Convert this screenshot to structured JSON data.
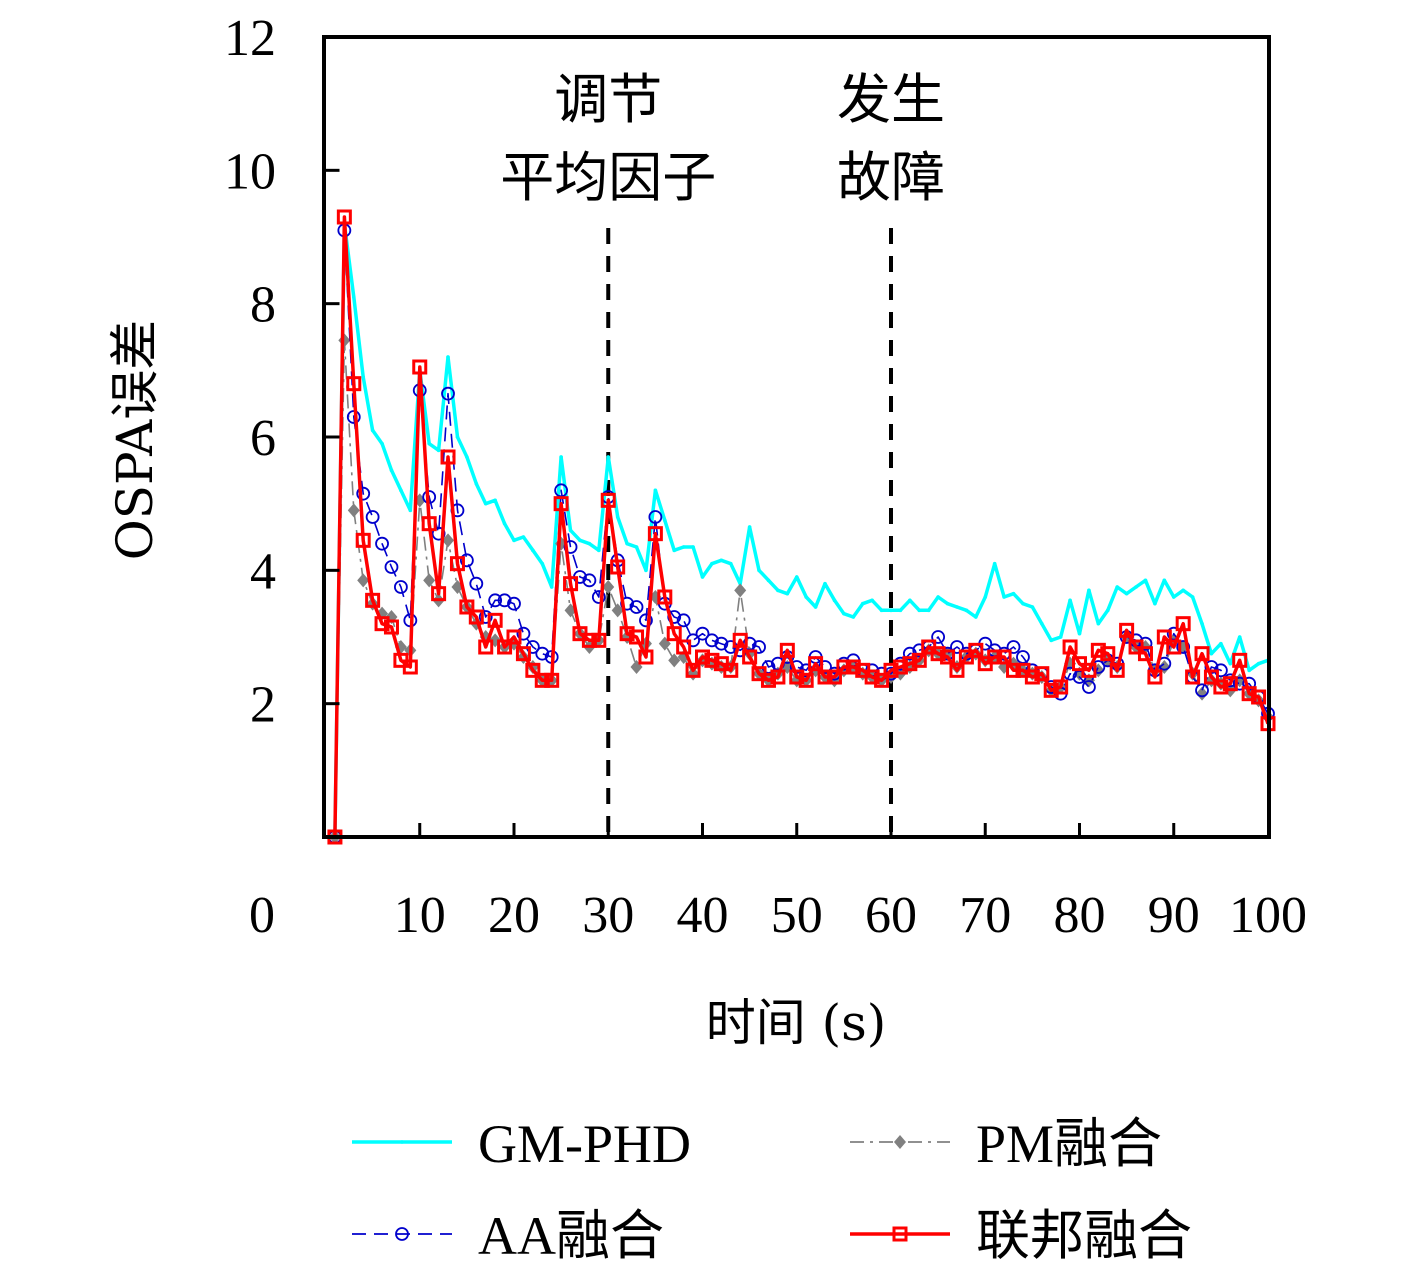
{
  "chart_data": {
    "type": "line",
    "title": "",
    "xlabel": "时间 (s)",
    "ylabel": "OSPA误差",
    "xlim": [
      0,
      100
    ],
    "ylim": [
      0,
      12
    ],
    "xticks": [
      0,
      10,
      20,
      30,
      40,
      50,
      60,
      70,
      80,
      90,
      100
    ],
    "xtick_labels": [
      "0",
      "10",
      "20",
      "30",
      "40",
      "50",
      "60",
      "70",
      "80",
      "90",
      "100"
    ],
    "yticks": [
      2,
      4,
      6,
      8,
      10,
      12
    ],
    "ytick_labels": [
      "2",
      "4",
      "6",
      "8",
      "10",
      "12"
    ],
    "grid": false,
    "legend_position": "bottom",
    "annotations": [
      {
        "x": 30,
        "lines": [
          "调节",
          "平均因子"
        ],
        "style": "dashed-vline"
      },
      {
        "x": 60,
        "lines": [
          "发生",
          "故障"
        ],
        "style": "dashed-vline"
      }
    ],
    "x": [
      1,
      2,
      3,
      4,
      5,
      6,
      7,
      8,
      9,
      10,
      11,
      12,
      13,
      14,
      15,
      16,
      17,
      18,
      19,
      20,
      21,
      22,
      23,
      24,
      25,
      26,
      27,
      28,
      29,
      30,
      31,
      32,
      33,
      34,
      35,
      36,
      37,
      38,
      39,
      40,
      41,
      42,
      43,
      44,
      45,
      46,
      47,
      48,
      49,
      50,
      51,
      52,
      53,
      54,
      55,
      56,
      57,
      58,
      59,
      60,
      61,
      62,
      63,
      64,
      65,
      66,
      67,
      68,
      69,
      70,
      71,
      72,
      73,
      74,
      75,
      76,
      77,
      78,
      79,
      80,
      81,
      82,
      83,
      84,
      85,
      86,
      87,
      88,
      89,
      90,
      91,
      92,
      93,
      94,
      95,
      96,
      97,
      98,
      99,
      100
    ],
    "series": [
      {
        "name": "GM-PHD",
        "color": "#00ffff",
        "line": "solid",
        "marker": "dot",
        "values": [
          0,
          9.2,
          8.1,
          6.9,
          6.1,
          5.9,
          5.5,
          5.2,
          4.9,
          7.0,
          5.9,
          5.8,
          7.2,
          6.0,
          5.7,
          5.3,
          5.0,
          5.05,
          4.7,
          4.45,
          4.5,
          4.3,
          4.1,
          3.75,
          5.7,
          4.6,
          4.45,
          4.4,
          4.3,
          5.7,
          4.8,
          4.4,
          4.35,
          4.0,
          5.2,
          4.75,
          4.3,
          4.35,
          4.35,
          3.9,
          4.1,
          4.15,
          4.1,
          3.8,
          4.65,
          4.0,
          3.85,
          3.7,
          3.65,
          3.9,
          3.6,
          3.45,
          3.8,
          3.55,
          3.35,
          3.3,
          3.5,
          3.55,
          3.4,
          3.4,
          3.4,
          3.55,
          3.4,
          3.4,
          3.6,
          3.5,
          3.45,
          3.4,
          3.3,
          3.6,
          4.1,
          3.6,
          3.65,
          3.5,
          3.45,
          3.2,
          2.95,
          3.0,
          3.55,
          3.05,
          3.7,
          3.2,
          3.4,
          3.75,
          3.65,
          3.75,
          3.85,
          3.5,
          3.85,
          3.6,
          3.7,
          3.6,
          3.2,
          2.75,
          2.9,
          2.6,
          3.0,
          2.5,
          2.6,
          2.65
        ]
      },
      {
        "name": "AA融合",
        "color": "#0000cc",
        "line": "dashed",
        "marker": "circle",
        "values": [
          0,
          9.1,
          6.3,
          5.15,
          4.8,
          4.4,
          4.05,
          3.75,
          3.25,
          6.7,
          5.1,
          4.55,
          6.65,
          4.9,
          4.15,
          3.8,
          3.3,
          3.55,
          3.55,
          3.5,
          3.05,
          2.85,
          2.75,
          2.7,
          5.2,
          4.35,
          3.9,
          3.85,
          3.6,
          5.1,
          4.15,
          3.5,
          3.45,
          3.25,
          4.8,
          3.5,
          3.3,
          3.25,
          2.95,
          3.05,
          2.95,
          2.9,
          2.85,
          2.8,
          2.9,
          2.85,
          2.55,
          2.6,
          2.7,
          2.55,
          2.5,
          2.7,
          2.55,
          2.45,
          2.6,
          2.65,
          2.5,
          2.5,
          2.45,
          2.45,
          2.6,
          2.75,
          2.8,
          2.85,
          3.0,
          2.75,
          2.85,
          2.75,
          2.8,
          2.9,
          2.8,
          2.75,
          2.85,
          2.7,
          2.5,
          2.45,
          2.25,
          2.15,
          2.45,
          2.4,
          2.25,
          2.55,
          2.65,
          2.6,
          3.0,
          2.95,
          2.9,
          2.5,
          2.6,
          3.05,
          2.85,
          2.4,
          2.2,
          2.55,
          2.5,
          2.35,
          2.3,
          2.3,
          2.1,
          1.85
        ]
      },
      {
        "name": "PM融合",
        "color": "#808080",
        "line": "dashdot",
        "marker": "diamond",
        "values": [
          0,
          7.45,
          4.9,
          3.85,
          3.5,
          3.35,
          3.3,
          2.85,
          2.8,
          5.05,
          3.85,
          3.55,
          4.45,
          3.75,
          3.45,
          3.2,
          3.0,
          2.95,
          2.85,
          2.9,
          2.7,
          2.55,
          2.35,
          2.35,
          4.4,
          3.4,
          3.05,
          2.85,
          2.95,
          3.75,
          3.4,
          3.0,
          2.55,
          2.9,
          3.6,
          2.9,
          2.65,
          2.7,
          2.45,
          2.65,
          2.6,
          2.55,
          2.55,
          3.7,
          2.75,
          2.45,
          2.35,
          2.45,
          2.55,
          2.35,
          2.35,
          2.5,
          2.4,
          2.35,
          2.5,
          2.55,
          2.45,
          2.4,
          2.35,
          2.4,
          2.45,
          2.55,
          2.65,
          2.8,
          2.75,
          2.75,
          2.55,
          2.7,
          2.75,
          2.65,
          2.7,
          2.55,
          2.6,
          2.5,
          2.45,
          2.4,
          2.2,
          2.25,
          2.6,
          2.45,
          2.35,
          2.5,
          2.65,
          2.55,
          3.0,
          2.85,
          2.85,
          2.5,
          2.55,
          2.95,
          2.85,
          2.45,
          2.15,
          2.35,
          2.3,
          2.2,
          2.35,
          2.15,
          2.05,
          1.8
        ]
      },
      {
        "name": "联邦融合",
        "color": "#ff0000",
        "line": "solid",
        "marker": "square",
        "values": [
          0,
          9.3,
          6.8,
          4.45,
          3.55,
          3.2,
          3.15,
          2.65,
          2.55,
          7.05,
          4.7,
          3.65,
          5.7,
          4.1,
          3.45,
          3.3,
          2.85,
          3.25,
          2.85,
          3.0,
          2.75,
          2.5,
          2.35,
          2.35,
          5.0,
          3.8,
          3.05,
          2.95,
          2.95,
          5.05,
          4.05,
          3.05,
          3.0,
          2.7,
          4.55,
          3.6,
          3.05,
          2.85,
          2.5,
          2.7,
          2.65,
          2.6,
          2.5,
          2.95,
          2.7,
          2.45,
          2.35,
          2.4,
          2.8,
          2.4,
          2.35,
          2.6,
          2.4,
          2.4,
          2.55,
          2.55,
          2.5,
          2.4,
          2.35,
          2.5,
          2.55,
          2.6,
          2.65,
          2.85,
          2.75,
          2.7,
          2.5,
          2.7,
          2.8,
          2.6,
          2.7,
          2.7,
          2.5,
          2.5,
          2.4,
          2.45,
          2.2,
          2.25,
          2.85,
          2.6,
          2.5,
          2.8,
          2.75,
          2.5,
          3.1,
          2.85,
          2.75,
          2.4,
          3.0,
          2.85,
          3.2,
          2.4,
          2.75,
          2.4,
          2.25,
          2.3,
          2.65,
          2.15,
          2.1,
          1.7
        ]
      }
    ]
  }
}
